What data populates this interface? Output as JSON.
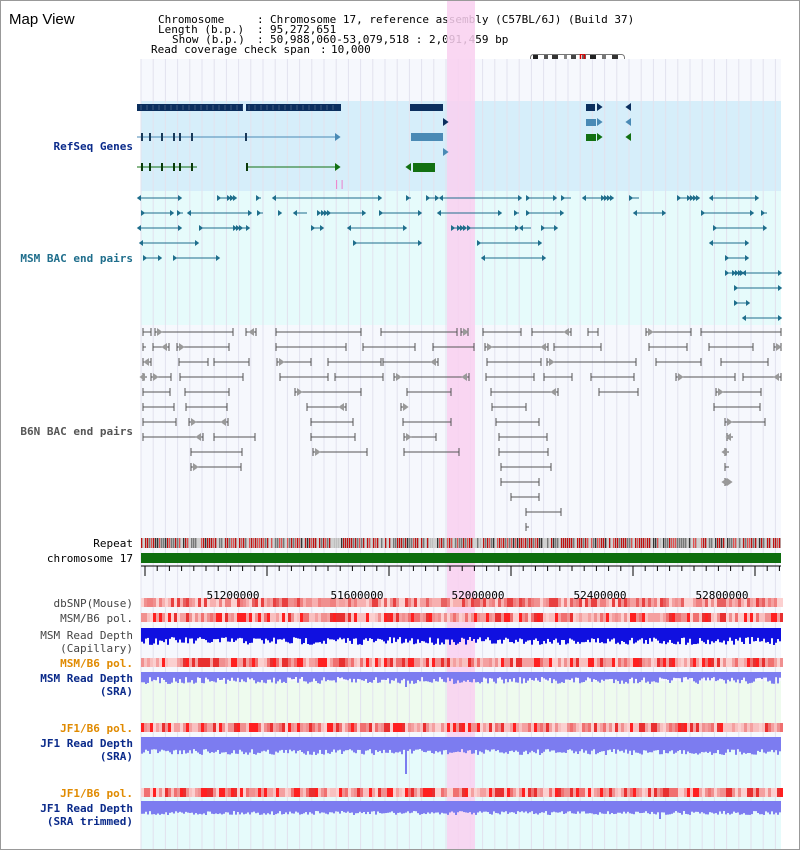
{
  "panel": {
    "title": "Map View"
  },
  "info": {
    "chromosome_label": "Chromosome",
    "chromosome_value": "Chromosome 17, reference assembly (C57BL/6J) (Build 37)",
    "length_label": "Length (b.p.)",
    "length_value": "95,272,651",
    "show_label": "Show (b.p.)",
    "show_value": "50,988,060-53,079,518 : 2,091,459 bp",
    "coverage_label": "Read coverage check span",
    "coverage_value": "10,000"
  },
  "tracks": {
    "refseq": "RefSeq Genes",
    "msm_bac": "MSM BAC end pairs",
    "b6n_bac": "B6N BAC end pairs",
    "repeat": "Repeat",
    "chromosome": "chromosome 17",
    "dbsnp": "dbSNP(Mouse)",
    "msm_b6_pol_1": "MSM/B6 pol.",
    "msm_depth_cap_1": "MSM Read Depth",
    "msm_depth_cap_2": "(Capillary)",
    "msm_b6_pol_2": "MSM/B6 pol.",
    "msm_depth_sra_1": "MSM Read Depth",
    "msm_depth_sra_2": "(SRA)",
    "jf1_b6_pol_1": "JF1/B6 pol.",
    "jf1_depth_sra_1": "JF1 Read Depth",
    "jf1_depth_sra_2": "(SRA)",
    "jf1_b6_pol_2": "JF1/B6 pol.",
    "jf1_depth_trim_1": "JF1 Read Depth",
    "jf1_depth_trim_2": "(SRA trimmed)"
  },
  "ruler": {
    "ticks": [
      "51200000",
      "51600000",
      "52000000",
      "52400000",
      "52800000"
    ]
  },
  "colors": {
    "navy": "#0b2f5e",
    "refseq_light": "#4a8ab5",
    "refseq_green": "#127012",
    "msm_bac": "#1f6e8c",
    "b6n_bac": "#555555",
    "label_blue": "#0a2a8a",
    "label_orange": "#e08a00",
    "highlight": "#f9d0f0",
    "depth_blue": "#1010e0",
    "depth_light": "#7c7cf0"
  }
}
